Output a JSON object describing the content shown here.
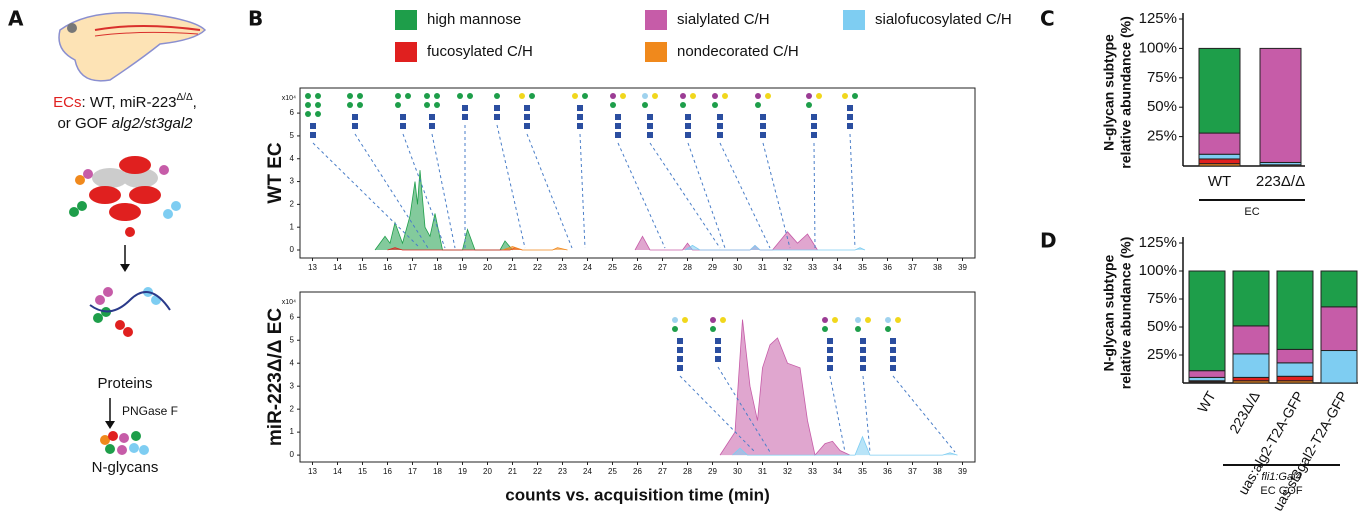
{
  "figure": {
    "panel_labels": [
      "A",
      "B",
      "C",
      "D"
    ],
    "panel_a": {
      "line1": [
        "ECs",
        ": WT, miR-223",
        "Δ/Δ",
        ","
      ],
      "line2": [
        "or GOF ",
        "alg2/st3gal2"
      ],
      "steps": [
        "Proteins",
        "PNGase F",
        "N-glycans"
      ]
    }
  },
  "chart_data": [
    {
      "type": "area",
      "title": "WT EC",
      "y_unit": "x10⁴",
      "xlim": [
        12.5,
        39.5
      ],
      "ylim": [
        -0.35,
        7.1
      ],
      "xticks": [
        13,
        14,
        15,
        16,
        17,
        18,
        19,
        20,
        21,
        22,
        23,
        24,
        25,
        26,
        27,
        28,
        29,
        30,
        31,
        32,
        33,
        34,
        35,
        36,
        37,
        38,
        39
      ],
      "yticks": [
        0,
        1,
        2,
        3,
        4,
        5,
        6
      ],
      "series": [
        {
          "name": "high mannose",
          "color": "#1e9e4a",
          "x": [
            15.5,
            15.9,
            16.1,
            16.3,
            16.6,
            16.9,
            17.1,
            17.2,
            17.3,
            17.5,
            17.7,
            17.9,
            18.2,
            19.0,
            19.2,
            19.5,
            20.5,
            20.7,
            21.0
          ],
          "values": [
            0,
            0.6,
            0.3,
            1.2,
            0.3,
            1.5,
            3.0,
            2.0,
            3.5,
            1.0,
            0.6,
            1.6,
            0,
            0,
            0.9,
            0,
            0,
            0.4,
            0
          ]
        },
        {
          "name": "fucosylated C/H",
          "color": "#e0201f",
          "x": [
            16.0,
            16.3,
            16.6,
            20.9,
            21.1,
            21.4
          ],
          "values": [
            0,
            0.1,
            0,
            0,
            0.1,
            0
          ]
        },
        {
          "name": "sialylated C/H",
          "color": "#c65ca8",
          "x": [
            25.9,
            26.2,
            26.5,
            27.8,
            28.0,
            28.2,
            30.5,
            30.7,
            30.9,
            31.4,
            32.0,
            32.4,
            32.8,
            33.2
          ],
          "values": [
            0,
            0.6,
            0,
            0,
            0.3,
            0,
            0,
            0.2,
            0,
            0,
            0.8,
            0.3,
            0.7,
            0
          ]
        },
        {
          "name": "nondecorated C/H",
          "color": "#f0891c",
          "x": [
            20.6,
            21.0,
            21.4,
            22.6,
            22.8,
            23.2
          ],
          "values": [
            0,
            0.15,
            0,
            0,
            0.1,
            0
          ]
        },
        {
          "name": "sialofucosylated C/H",
          "color": "#7ecdf2",
          "x": [
            27.9,
            28.2,
            28.5,
            30.5,
            30.7,
            30.9,
            34.7,
            34.9,
            35.1
          ],
          "values": [
            0,
            0.2,
            0,
            0,
            0.2,
            0,
            0,
            0.1,
            0
          ]
        }
      ]
    },
    {
      "type": "area",
      "title": "miR-223Δ/Δ EC",
      "y_unit": "x10⁴",
      "xlabel": "counts vs. acquisition time (min)",
      "xlim": [
        12.5,
        39.5
      ],
      "ylim": [
        -0.3,
        7.1
      ],
      "xticks": [
        13,
        14,
        15,
        16,
        17,
        18,
        19,
        20,
        21,
        22,
        23,
        24,
        25,
        26,
        27,
        28,
        29,
        30,
        31,
        32,
        33,
        34,
        35,
        36,
        37,
        38,
        39
      ],
      "yticks": [
        0,
        1,
        2,
        3,
        4,
        5,
        6
      ],
      "series": [
        {
          "color": "#c65ca8",
          "x": [
            29.3,
            29.9,
            30.2,
            30.5,
            30.8,
            31.0,
            31.3,
            31.6,
            32.0,
            32.5,
            32.8,
            33.1,
            33.5,
            33.8,
            34.1,
            34.5
          ],
          "values": [
            0,
            1,
            5.9,
            3,
            1.5,
            3.8,
            4.8,
            5.1,
            4.0,
            3.8,
            1.5,
            0,
            0.5,
            0.6,
            0.2,
            0
          ]
        },
        {
          "color": "#7ecdf2",
          "x": [
            29.8,
            30.1,
            30.4,
            34.7,
            35.0,
            35.3,
            38.2,
            38.5,
            38.8
          ],
          "values": [
            0,
            0.3,
            0,
            0,
            0.8,
            0,
            0,
            0.1,
            0
          ]
        }
      ]
    },
    {
      "type": "stacked_bar",
      "ylabel": [
        "N-glycan subtype",
        "relative abundance (%)"
      ],
      "categories": [
        "WT",
        "223Δ/Δ"
      ],
      "group_label": [
        "EC"
      ],
      "ylim": [
        0,
        125
      ],
      "yticks": [
        {
          "value": 25,
          "label": "25%"
        },
        {
          "value": 50,
          "label": "50%"
        },
        {
          "value": 75,
          "label": "75%"
        },
        {
          "value": 100,
          "label": "100%"
        },
        {
          "value": 125,
          "label": "125%"
        }
      ],
      "series": [
        {
          "color": "#f0891c",
          "values": [
            2,
            1
          ]
        },
        {
          "color": "#e0201f",
          "values": [
            4,
            0
          ]
        },
        {
          "color": "#7ecdf2",
          "values": [
            4,
            2
          ]
        },
        {
          "color": "#c65ca8",
          "values": [
            18,
            97
          ]
        },
        {
          "color": "#1e9e4a",
          "values": [
            72,
            0
          ]
        }
      ]
    },
    {
      "type": "stacked_bar",
      "ylabel": [
        "N-glycan subtype",
        "relative abundance (%)"
      ],
      "categories": [
        "WT",
        "223Δ/Δ",
        "uas:alg2-T2A-GFP",
        "uas:st3gal2-T2A-GFP"
      ],
      "group_label": [
        "fli1:Gal4",
        "EC GOF"
      ],
      "ylim": [
        0,
        125
      ],
      "yticks": [
        {
          "value": 25,
          "label": "25%"
        },
        {
          "value": 50,
          "label": "50%"
        },
        {
          "value": 75,
          "label": "75%"
        },
        {
          "value": 100,
          "label": "100%"
        },
        {
          "value": 125,
          "label": "125%"
        }
      ],
      "series": [
        {
          "color": "#f0891c",
          "values": [
            1,
            2,
            2,
            0
          ]
        },
        {
          "color": "#e0201f",
          "values": [
            1,
            3,
            4,
            0
          ]
        },
        {
          "color": "#7ecdf2",
          "values": [
            3,
            21,
            12,
            29
          ]
        },
        {
          "color": "#c65ca8",
          "values": [
            6,
            25,
            12,
            39
          ]
        },
        {
          "color": "#1e9e4a",
          "values": [
            89,
            49,
            70,
            32
          ]
        }
      ]
    }
  ]
}
